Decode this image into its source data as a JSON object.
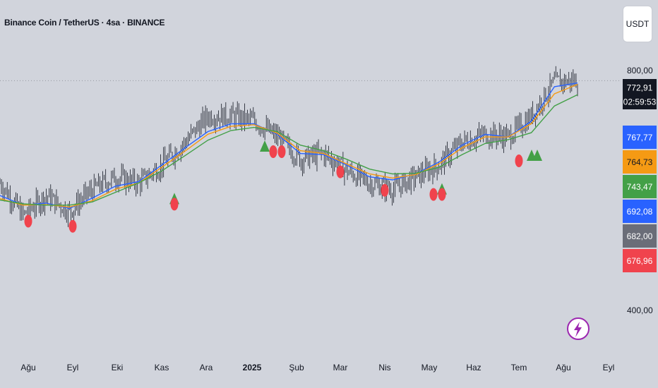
{
  "header": {
    "title": "Binance Coin / TetherUS · 4sa · BINANCE",
    "currency_button": "USDT"
  },
  "colors": {
    "background": "#d1d4dc",
    "candle": "#131722",
    "ema_fast": "#2962ff",
    "ema_mid": "#f59a14",
    "ema_slow": "#43a047",
    "buy_signal": "#43a047",
    "sell_signal": "#f0434d",
    "last_price_line": "#9598a1",
    "bolt_border": "#9c27b0"
  },
  "icons": {
    "bolt": "lightning-bolt-icon"
  },
  "chart_data": {
    "type": "line",
    "title": "",
    "xlabel": "",
    "ylabel": "",
    "x_ticks": [
      "Ağu",
      "Eyl",
      "Eki",
      "Kas",
      "Ara",
      "2025",
      "Şub",
      "Mar",
      "Nis",
      "May",
      "Haz",
      "Tem",
      "Ağu",
      "Eyl"
    ],
    "bold_tick": "2025",
    "y_scale": "log",
    "ylim": [
      360,
      840
    ],
    "y_ticks": [
      "800,00",
      "400,00"
    ],
    "x": [
      "Ağu",
      "Ağu+",
      "Eyl",
      "Eyl+",
      "Eki",
      "Eki+",
      "Kas",
      "Kas+",
      "Ara",
      "Ara+",
      "2025",
      "2025+",
      "Şub",
      "Şub+",
      "Mar",
      "Mar+",
      "Nis",
      "Nis+",
      "May",
      "May+",
      "Haz",
      "Haz+",
      "Tem",
      "Tem+",
      "Ağu",
      "Ağu*"
    ],
    "price": [
      580,
      530,
      560,
      535,
      570,
      590,
      580,
      610,
      650,
      700,
      700,
      690,
      660,
      620,
      630,
      600,
      580,
      570,
      590,
      610,
      650,
      665,
      660,
      700,
      770,
      773
    ],
    "series": [
      {
        "name": "",
        "values": [
          560,
          545,
          548,
          540,
          556,
          575,
          582,
          610,
          640,
          670,
          685,
          685,
          665,
          630,
          628,
          610,
          590,
          585,
          595,
          615,
          645,
          665,
          660,
          690,
          760,
          768
        ]
      },
      {
        "name": "",
        "values": [
          555,
          545,
          546,
          542,
          552,
          570,
          580,
          606,
          634,
          665,
          680,
          683,
          667,
          635,
          630,
          612,
          595,
          588,
          594,
          612,
          640,
          660,
          660,
          685,
          745,
          765
        ]
      },
      {
        "name": "",
        "values": [
          553,
          547,
          545,
          545,
          550,
          565,
          580,
          600,
          626,
          654,
          672,
          678,
          670,
          645,
          635,
          620,
          603,
          595,
          596,
          606,
          628,
          648,
          655,
          668,
          720,
          743
        ]
      }
    ],
    "signals": {
      "buy": [
        "Kas",
        "2025",
        "May",
        "Tem",
        "Tem"
      ],
      "sell": [
        "Ağu",
        "Eyl",
        "Kas",
        "2025",
        "2025",
        "Mar",
        "Nis",
        "May",
        "May",
        "Tem"
      ]
    },
    "price_labels": [
      {
        "value": "800,00",
        "kind": "tick"
      },
      {
        "value": "772,91",
        "kind": "last",
        "bg": "#131722",
        "fg": "#ffffff"
      },
      {
        "value": "02:59:53",
        "kind": "countdown",
        "bg": "#131722",
        "fg": "#ffffff"
      },
      {
        "value": "767,77",
        "kind": "ema",
        "bg": "#2962ff",
        "fg": "#ffffff"
      },
      {
        "value": "764,73",
        "kind": "ema",
        "bg": "#f59a14",
        "fg": "#131722"
      },
      {
        "value": "743,47",
        "kind": "ema",
        "bg": "#43a047",
        "fg": "#ffffff"
      },
      {
        "value": "692,08",
        "kind": "marker",
        "bg": "#2962ff",
        "fg": "#ffffff"
      },
      {
        "value": "682,00",
        "kind": "marker",
        "bg": "#6a6d78",
        "fg": "#ffffff"
      },
      {
        "value": "676,96",
        "kind": "marker",
        "bg": "#f0434d",
        "fg": "#ffffff"
      },
      {
        "value": "400,00",
        "kind": "tick"
      }
    ]
  }
}
